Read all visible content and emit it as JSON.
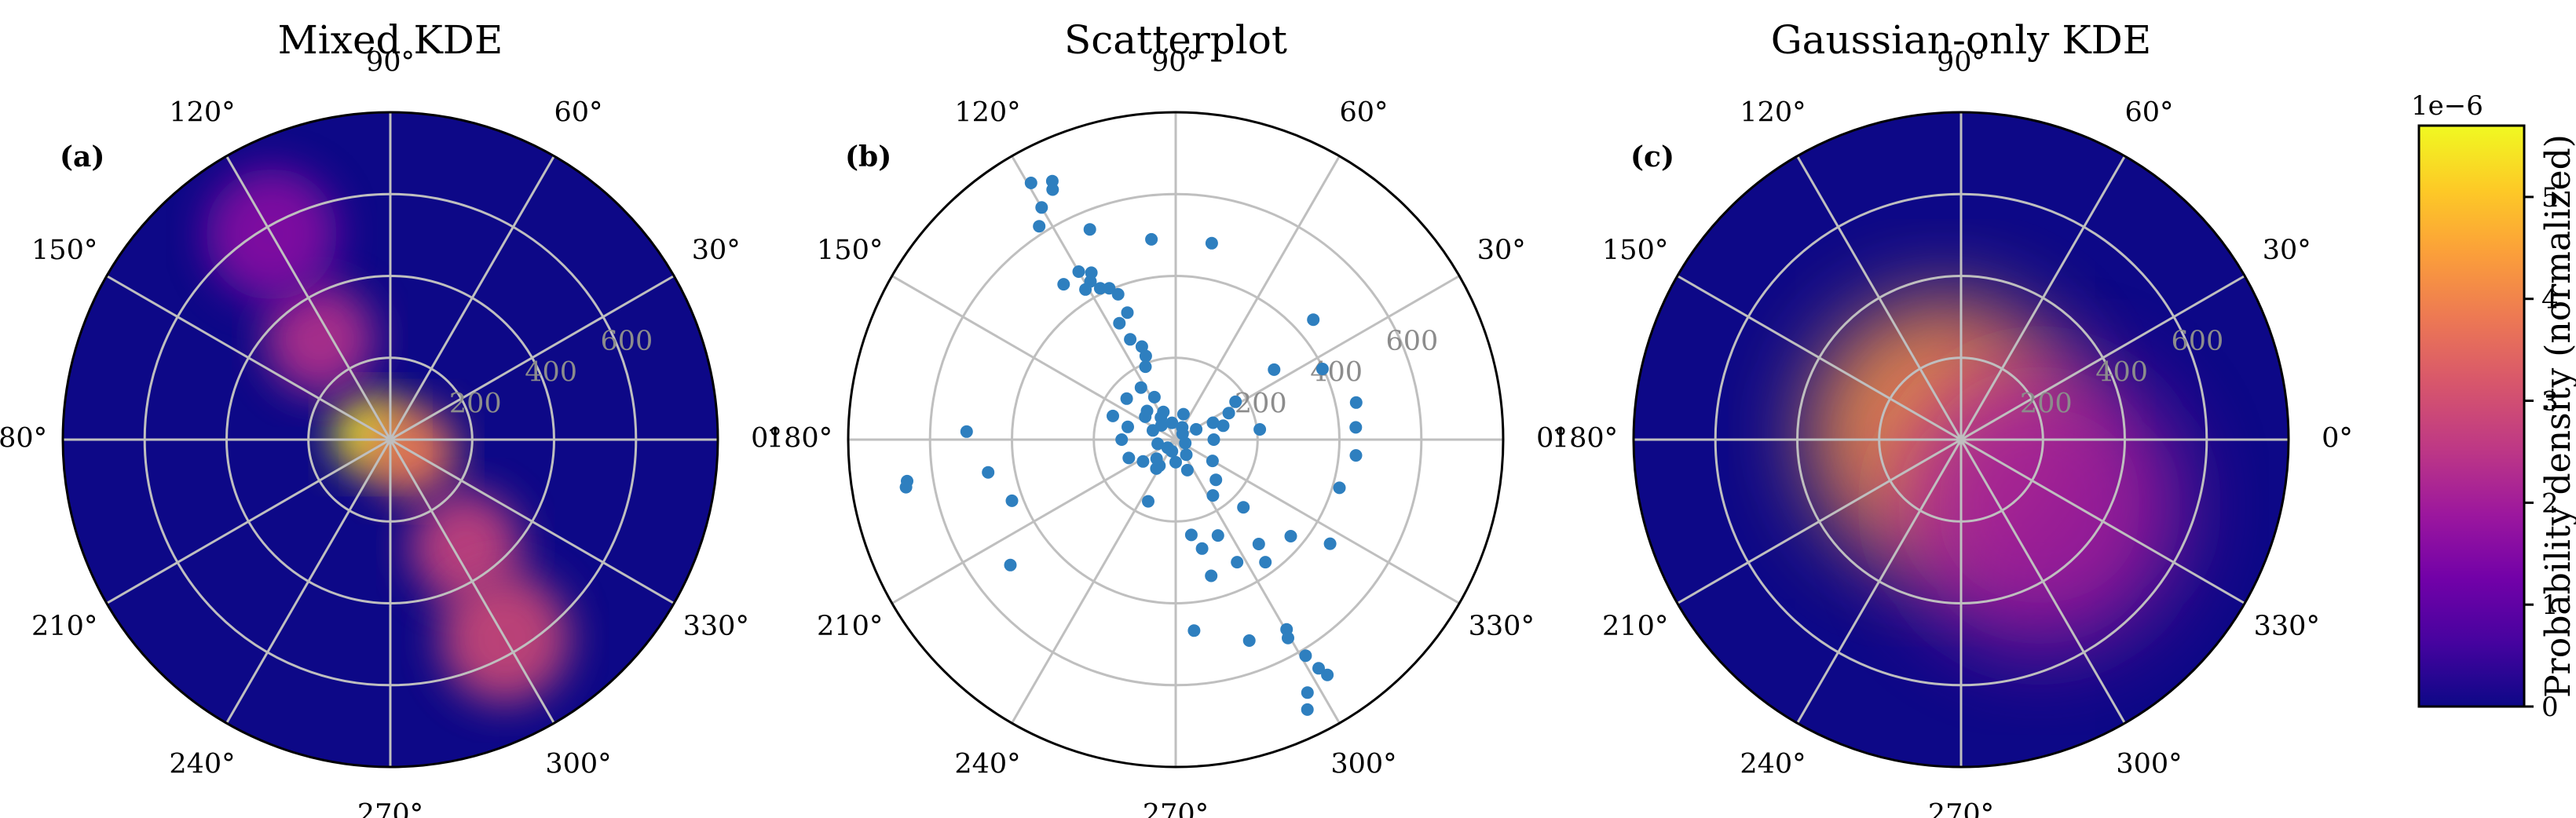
{
  "colors": {
    "colormap": [
      "#0d0887",
      "#46039f",
      "#7201a8",
      "#9c179e",
      "#bd3786",
      "#d8576b",
      "#ed7953",
      "#fb9f3a",
      "#fdca26",
      "#f0f921"
    ],
    "point": "#2e7fbf",
    "grid": "#bfbfbf",
    "radial_label": "#8c8c8c"
  },
  "panels": [
    {
      "title": "Mixed KDE",
      "label": "(a)",
      "angle_labels": [
        "0°",
        "30°",
        "60°",
        "90°",
        "120°",
        "150°",
        "180°",
        "210°",
        "240°",
        "270°",
        "300°",
        "330°"
      ],
      "radial_ticks": [
        "200",
        "400",
        "600"
      ]
    },
    {
      "title": "Scatterplot",
      "label": "(b)",
      "angle_labels": [
        "0°",
        "30°",
        "60°",
        "90°",
        "120°",
        "150°",
        "180°",
        "210°",
        "240°",
        "270°",
        "300°",
        "330°"
      ],
      "radial_ticks": [
        "200",
        "400",
        "600"
      ]
    },
    {
      "title": "Gaussian-only KDE",
      "label": "(c)",
      "angle_labels": [
        "0°",
        "30°",
        "60°",
        "90°",
        "120°",
        "150°",
        "180°",
        "210°",
        "240°",
        "270°",
        "300°",
        "330°"
      ],
      "radial_ticks": [
        "200",
        "400",
        "600"
      ]
    }
  ],
  "colorbar": {
    "label": "Probability density (normalized)",
    "multiplier": "1e−6",
    "ticks": [
      "0",
      "1",
      "2",
      "3",
      "4",
      "5"
    ],
    "vmin": 0,
    "vmax": 5.7
  },
  "chart_data": [
    {
      "type": "heatmap",
      "subtype": "polar",
      "title": "Mixed KDE",
      "theta_ticks_deg": [
        0,
        30,
        60,
        90,
        120,
        150,
        180,
        210,
        240,
        270,
        300,
        330
      ],
      "r_ticks": [
        200,
        400,
        600
      ],
      "rlim": [
        0,
        800
      ],
      "grid": true,
      "density_peaks": [
        {
          "theta_deg": 165,
          "r": 50,
          "value": 5.6
        },
        {
          "theta_deg": 330,
          "r": 60,
          "value": 3.8
        },
        {
          "theta_deg": 125,
          "r": 300,
          "value": 2.4
        },
        {
          "theta_deg": 305,
          "r": 320,
          "value": 2.8
        },
        {
          "theta_deg": 300,
          "r": 560,
          "value": 2.9
        },
        {
          "theta_deg": 120,
          "r": 580,
          "value": 1.6
        }
      ]
    },
    {
      "type": "scatter",
      "subtype": "polar",
      "title": "Scatterplot",
      "theta_ticks_deg": [
        0,
        30,
        60,
        90,
        120,
        150,
        180,
        210,
        240,
        270,
        300,
        330
      ],
      "r_ticks": [
        200,
        400,
        600
      ],
      "rlim": [
        0,
        800
      ],
      "grid": true,
      "points": [
        {
          "theta_deg": 119.4,
          "r": 720
        },
        {
          "theta_deg": 115.5,
          "r": 700
        },
        {
          "theta_deg": 116.2,
          "r": 681
        },
        {
          "theta_deg": 120.0,
          "r": 655
        },
        {
          "theta_deg": 122.6,
          "r": 619
        },
        {
          "theta_deg": 112.2,
          "r": 555
        },
        {
          "theta_deg": 96.9,
          "r": 493
        },
        {
          "theta_deg": 125.8,
          "r": 468
        },
        {
          "theta_deg": 120.0,
          "r": 474
        },
        {
          "theta_deg": 118.3,
          "r": 439
        },
        {
          "theta_deg": 116.8,
          "r": 457
        },
        {
          "theta_deg": 121.0,
          "r": 428
        },
        {
          "theta_deg": 116.5,
          "r": 413
        },
        {
          "theta_deg": 113.7,
          "r": 404
        },
        {
          "theta_deg": 111.6,
          "r": 382
        },
        {
          "theta_deg": 110.8,
          "r": 332
        },
        {
          "theta_deg": 115.8,
          "r": 316
        },
        {
          "theta_deg": 114.4,
          "r": 269
        },
        {
          "theta_deg": 110.0,
          "r": 242
        },
        {
          "theta_deg": 109.7,
          "r": 217
        },
        {
          "theta_deg": 112.5,
          "r": 193
        },
        {
          "theta_deg": 123.7,
          "r": 153
        },
        {
          "theta_deg": 116.6,
          "r": 116
        },
        {
          "theta_deg": 114.0,
          "r": 74
        },
        {
          "theta_deg": 123.7,
          "r": 65
        },
        {
          "theta_deg": 140.1,
          "r": 156
        },
        {
          "theta_deg": 159.4,
          "r": 164
        },
        {
          "theta_deg": 165.1,
          "r": 121
        },
        {
          "theta_deg": 180.0,
          "r": 132
        },
        {
          "theta_deg": 143.1,
          "r": 93
        },
        {
          "theta_deg": 135.0,
          "r": 49
        },
        {
          "theta_deg": 102.3,
          "r": 42
        },
        {
          "theta_deg": 61.9,
          "r": 34
        },
        {
          "theta_deg": 26.6,
          "r": 56
        },
        {
          "theta_deg": 32.3,
          "r": 173
        },
        {
          "theta_deg": 26.6,
          "r": 145
        },
        {
          "theta_deg": 16.3,
          "r": 121
        },
        {
          "theta_deg": 35.4,
          "r": 295
        },
        {
          "theta_deg": 25.7,
          "r": 398
        },
        {
          "theta_deg": 41.1,
          "r": 446
        },
        {
          "theta_deg": 79.6,
          "r": 488
        },
        {
          "theta_deg": 6.9,
          "r": 207
        },
        {
          "theta_deg": 11.6,
          "r": 450
        },
        {
          "theta_deg": 3.9,
          "r": 441
        },
        {
          "theta_deg": 355.0,
          "r": 442
        },
        {
          "theta_deg": 343.6,
          "r": 417
        },
        {
          "theta_deg": 200.5,
          "r": 427
        },
        {
          "theta_deg": 189.9,
          "r": 465
        },
        {
          "theta_deg": 177.8,
          "r": 511
        },
        {
          "theta_deg": 188.8,
          "r": 664
        },
        {
          "theta_deg": 190.0,
          "r": 669
        },
        {
          "theta_deg": 217.2,
          "r": 507
        },
        {
          "theta_deg": 201.4,
          "r": 123
        },
        {
          "theta_deg": 238.0,
          "r": 75
        },
        {
          "theta_deg": 246.0,
          "r": 165
        },
        {
          "theta_deg": 279.3,
          "r": 236
        },
        {
          "theta_deg": 283.6,
          "r": 274
        },
        {
          "theta_deg": 293.8,
          "r": 256
        },
        {
          "theta_deg": 315.0,
          "r": 234
        },
        {
          "theta_deg": 296.6,
          "r": 335
        },
        {
          "theta_deg": 308.5,
          "r": 326
        },
        {
          "theta_deg": 320.0,
          "r": 367
        },
        {
          "theta_deg": 306.2,
          "r": 371
        },
        {
          "theta_deg": 284.6,
          "r": 344
        },
        {
          "theta_deg": 275.5,
          "r": 469
        },
        {
          "theta_deg": 290.1,
          "r": 523
        },
        {
          "theta_deg": 300.3,
          "r": 537
        },
        {
          "theta_deg": 299.5,
          "r": 557
        },
        {
          "theta_deg": 301.0,
          "r": 616
        },
        {
          "theta_deg": 302.0,
          "r": 659
        },
        {
          "theta_deg": 302.8,
          "r": 684
        },
        {
          "theta_deg": 297.5,
          "r": 697
        },
        {
          "theta_deg": 296.0,
          "r": 734
        },
        {
          "theta_deg": 326.0,
          "r": 455
        },
        {
          "theta_deg": 303.7,
          "r": 164
        },
        {
          "theta_deg": 315.0,
          "r": 139
        },
        {
          "theta_deg": 330.0,
          "r": 104
        },
        {
          "theta_deg": 270.0,
          "r": 55
        },
        {
          "theta_deg": 236.3,
          "r": 85
        },
        {
          "theta_deg": 225.0,
          "r": 66
        },
        {
          "theta_deg": 213.7,
          "r": 96
        },
        {
          "theta_deg": 24.4,
          "r": 100
        },
        {
          "theta_deg": 0.0,
          "r": 93
        },
        {
          "theta_deg": 135.0,
          "r": 99
        },
        {
          "theta_deg": 158.0,
          "r": 60
        },
        {
          "theta_deg": 193.0,
          "r": 45
        },
        {
          "theta_deg": 225.0,
          "r": 28
        },
        {
          "theta_deg": 252.0,
          "r": 30
        },
        {
          "theta_deg": 340.0,
          "r": 25
        },
        {
          "theta_deg": 40.0,
          "r": 22
        },
        {
          "theta_deg": 305.0,
          "r": 45
        },
        {
          "theta_deg": 291.0,
          "r": 80
        },
        {
          "theta_deg": 73.0,
          "r": 65
        }
      ]
    },
    {
      "type": "heatmap",
      "subtype": "polar",
      "title": "Gaussian-only KDE",
      "theta_ticks_deg": [
        0,
        30,
        60,
        90,
        120,
        150,
        180,
        210,
        240,
        270,
        300,
        330
      ],
      "r_ticks": [
        200,
        400,
        600
      ],
      "rlim": [
        0,
        800
      ],
      "grid": true,
      "density_peaks": [
        {
          "theta_deg": 160,
          "r": 50,
          "value": 4.3
        },
        {
          "theta_deg": 320,
          "r": 250,
          "value": 2.0
        }
      ]
    }
  ]
}
